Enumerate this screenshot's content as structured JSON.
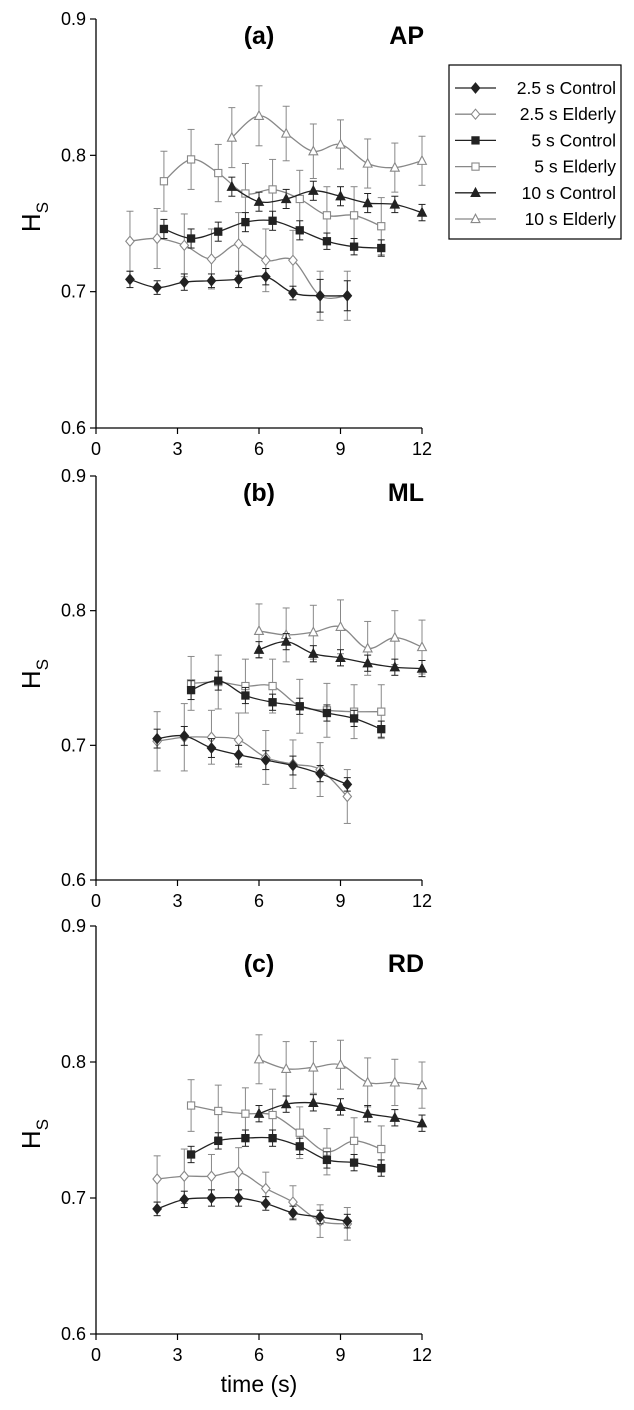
{
  "chart_data": [
    {
      "type": "line",
      "panel_label": "(a)",
      "direction_label": "AP",
      "ylabel": "H",
      "ylabel_subscript": "S",
      "xlim": [
        0,
        12
      ],
      "ylim": [
        0.6,
        0.9
      ],
      "xticks": [
        "0",
        "3",
        "6",
        "9",
        "12"
      ],
      "yticks": [
        "0.6",
        "0.7",
        "0.8",
        "0.9"
      ],
      "grid": false,
      "legend_position": "right",
      "series": [
        {
          "name": "2.5 s Control",
          "marker": "diamond-filled",
          "color": "#222222",
          "x": [
            1.25,
            2.25,
            3.25,
            4.25,
            5.25,
            6.25,
            7.25,
            8.25,
            9.25
          ],
          "y": [
            0.709,
            0.703,
            0.707,
            0.708,
            0.709,
            0.711,
            0.699,
            0.697,
            0.697
          ],
          "err": [
            0.006,
            0.005,
            0.006,
            0.005,
            0.006,
            0.006,
            0.005,
            0.012,
            0.011
          ]
        },
        {
          "name": "2.5 s Elderly",
          "marker": "diamond-open",
          "color": "#888888",
          "x": [
            1.25,
            2.25,
            3.25,
            4.25,
            5.25,
            6.25,
            7.25,
            8.25,
            9.25
          ],
          "y": [
            0.737,
            0.739,
            0.734,
            0.724,
            0.735,
            0.723,
            0.723,
            0.697,
            0.697
          ],
          "err": [
            0.022,
            0.022,
            0.023,
            0.022,
            0.023,
            0.023,
            0.022,
            0.018,
            0.018
          ]
        },
        {
          "name": "5 s Control",
          "marker": "square-filled",
          "color": "#222222",
          "x": [
            2.5,
            3.5,
            4.5,
            5.5,
            6.5,
            7.5,
            8.5,
            9.5,
            10.5
          ],
          "y": [
            0.746,
            0.739,
            0.744,
            0.751,
            0.752,
            0.745,
            0.737,
            0.733,
            0.732
          ],
          "err": [
            0.007,
            0.007,
            0.007,
            0.007,
            0.007,
            0.007,
            0.006,
            0.006,
            0.006
          ]
        },
        {
          "name": "5 s Elderly",
          "marker": "square-open",
          "color": "#888888",
          "x": [
            2.5,
            3.5,
            4.5,
            5.5,
            6.5,
            7.5,
            8.5,
            9.5,
            10.5
          ],
          "y": [
            0.781,
            0.797,
            0.787,
            0.772,
            0.775,
            0.768,
            0.756,
            0.756,
            0.748
          ],
          "err": [
            0.022,
            0.022,
            0.021,
            0.022,
            0.022,
            0.021,
            0.021,
            0.021,
            0.021
          ]
        },
        {
          "name": "10 s Control",
          "marker": "triangle-filled",
          "color": "#222222",
          "x": [
            5,
            6,
            7,
            8,
            9,
            10,
            11,
            12
          ],
          "y": [
            0.777,
            0.766,
            0.768,
            0.774,
            0.77,
            0.765,
            0.764,
            0.758
          ],
          "err": [
            0.007,
            0.007,
            0.007,
            0.007,
            0.007,
            0.007,
            0.006,
            0.006
          ]
        },
        {
          "name": "10 s Elderly",
          "marker": "triangle-open",
          "color": "#888888",
          "x": [
            5,
            6,
            7,
            8,
            9,
            10,
            11,
            12
          ],
          "y": [
            0.813,
            0.829,
            0.816,
            0.803,
            0.808,
            0.794,
            0.791,
            0.796
          ],
          "err": [
            0.022,
            0.022,
            0.02,
            0.02,
            0.018,
            0.018,
            0.018,
            0.018
          ]
        }
      ]
    },
    {
      "type": "line",
      "panel_label": "(b)",
      "direction_label": "ML",
      "ylabel": "H",
      "ylabel_subscript": "S",
      "xlim": [
        0,
        12
      ],
      "ylim": [
        0.6,
        0.9
      ],
      "xticks": [
        "0",
        "3",
        "6",
        "9",
        "12"
      ],
      "yticks": [
        "0.6",
        "0.7",
        "0.8",
        "0.9"
      ],
      "grid": false,
      "series": [
        {
          "name": "2.5 s Control",
          "marker": "diamond-filled",
          "color": "#222222",
          "x": [
            2.25,
            3.25,
            4.25,
            5.25,
            6.25,
            7.25,
            8.25,
            9.25
          ],
          "y": [
            0.705,
            0.707,
            0.698,
            0.693,
            0.689,
            0.685,
            0.679,
            0.671
          ],
          "err": [
            0.007,
            0.007,
            0.007,
            0.007,
            0.007,
            0.007,
            0.006,
            0.005
          ]
        },
        {
          "name": "2.5 s Elderly",
          "marker": "diamond-open",
          "color": "#888888",
          "x": [
            2.25,
            3.25,
            4.25,
            5.25,
            6.25,
            7.25,
            8.25,
            9.25
          ],
          "y": [
            0.703,
            0.706,
            0.706,
            0.704,
            0.691,
            0.686,
            0.682,
            0.662
          ],
          "err": [
            0.022,
            0.025,
            0.02,
            0.02,
            0.02,
            0.018,
            0.02,
            0.02
          ]
        },
        {
          "name": "5 s Control",
          "marker": "square-filled",
          "color": "#222222",
          "x": [
            3.5,
            4.5,
            5.5,
            6.5,
            7.5,
            8.5,
            9.5,
            10.5
          ],
          "y": [
            0.741,
            0.748,
            0.737,
            0.732,
            0.729,
            0.724,
            0.72,
            0.712
          ],
          "err": [
            0.007,
            0.007,
            0.006,
            0.006,
            0.006,
            0.006,
            0.006,
            0.006
          ]
        },
        {
          "name": "5 s Elderly",
          "marker": "square-open",
          "color": "#888888",
          "x": [
            3.5,
            4.5,
            5.5,
            6.5,
            7.5,
            8.5,
            9.5,
            10.5
          ],
          "y": [
            0.746,
            0.747,
            0.744,
            0.744,
            0.729,
            0.726,
            0.725,
            0.725
          ],
          "err": [
            0.02,
            0.02,
            0.02,
            0.02,
            0.02,
            0.02,
            0.02,
            0.02
          ]
        },
        {
          "name": "10 s Control",
          "marker": "triangle-filled",
          "color": "#222222",
          "x": [
            6,
            7,
            8,
            9,
            10,
            11,
            12
          ],
          "y": [
            0.771,
            0.777,
            0.768,
            0.765,
            0.761,
            0.758,
            0.757
          ],
          "err": [
            0.006,
            0.006,
            0.006,
            0.006,
            0.006,
            0.006,
            0.006
          ]
        },
        {
          "name": "10 s Elderly",
          "marker": "triangle-open",
          "color": "#888888",
          "x": [
            6,
            7,
            8,
            9,
            10,
            11,
            12
          ],
          "y": [
            0.785,
            0.782,
            0.784,
            0.788,
            0.772,
            0.78,
            0.773
          ],
          "err": [
            0.02,
            0.02,
            0.02,
            0.02,
            0.02,
            0.02,
            0.02
          ]
        }
      ]
    },
    {
      "type": "line",
      "panel_label": "(c)",
      "direction_label": "RD",
      "ylabel": "H",
      "ylabel_subscript": "S",
      "xlabel": "time (s)",
      "xlim": [
        0,
        12
      ],
      "ylim": [
        0.6,
        0.9
      ],
      "xticks": [
        "0",
        "3",
        "6",
        "9",
        "12"
      ],
      "yticks": [
        "0.6",
        "0.7",
        "0.8",
        "0.9"
      ],
      "grid": false,
      "series": [
        {
          "name": "2.5 s Control",
          "marker": "diamond-filled",
          "color": "#222222",
          "x": [
            2.25,
            3.25,
            4.25,
            5.25,
            6.25,
            7.25,
            8.25,
            9.25
          ],
          "y": [
            0.692,
            0.699,
            0.7,
            0.7,
            0.696,
            0.689,
            0.686,
            0.683
          ],
          "err": [
            0.005,
            0.006,
            0.006,
            0.006,
            0.005,
            0.005,
            0.005,
            0.005
          ]
        },
        {
          "name": "2.5 s Elderly",
          "marker": "diamond-open",
          "color": "#888888",
          "x": [
            2.25,
            3.25,
            4.25,
            5.25,
            6.25,
            7.25,
            8.25,
            9.25
          ],
          "y": [
            0.714,
            0.716,
            0.716,
            0.719,
            0.707,
            0.697,
            0.683,
            0.681
          ],
          "err": [
            0.017,
            0.02,
            0.016,
            0.018,
            0.012,
            0.012,
            0.012,
            0.012
          ]
        },
        {
          "name": "5 s Control",
          "marker": "square-filled",
          "color": "#222222",
          "x": [
            3.5,
            4.5,
            5.5,
            6.5,
            7.5,
            8.5,
            9.5,
            10.5
          ],
          "y": [
            0.732,
            0.742,
            0.744,
            0.744,
            0.738,
            0.728,
            0.726,
            0.722
          ],
          "err": [
            0.006,
            0.006,
            0.006,
            0.006,
            0.006,
            0.006,
            0.006,
            0.006
          ]
        },
        {
          "name": "5 s Elderly",
          "marker": "square-open",
          "color": "#888888",
          "x": [
            3.5,
            4.5,
            5.5,
            6.5,
            7.5,
            8.5,
            9.5,
            10.5
          ],
          "y": [
            0.768,
            0.764,
            0.762,
            0.761,
            0.748,
            0.734,
            0.742,
            0.736
          ],
          "err": [
            0.019,
            0.019,
            0.019,
            0.019,
            0.019,
            0.017,
            0.017,
            0.017
          ]
        },
        {
          "name": "10 s Control",
          "marker": "triangle-filled",
          "color": "#222222",
          "x": [
            6,
            7,
            8,
            9,
            10,
            11,
            12
          ],
          "y": [
            0.762,
            0.769,
            0.77,
            0.767,
            0.762,
            0.759,
            0.755
          ],
          "err": [
            0.006,
            0.006,
            0.006,
            0.006,
            0.006,
            0.006,
            0.006
          ]
        },
        {
          "name": "10 s Elderly",
          "marker": "triangle-open",
          "color": "#888888",
          "x": [
            6,
            7,
            8,
            9,
            10,
            11,
            12
          ],
          "y": [
            0.802,
            0.795,
            0.796,
            0.798,
            0.785,
            0.785,
            0.783
          ],
          "err": [
            0.018,
            0.02,
            0.019,
            0.018,
            0.018,
            0.017,
            0.017
          ]
        }
      ]
    }
  ]
}
